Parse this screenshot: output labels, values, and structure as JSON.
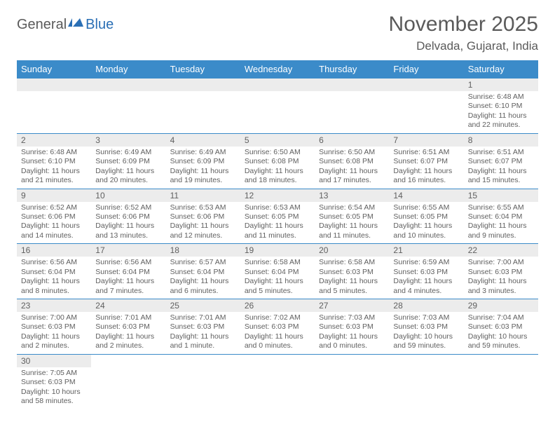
{
  "logo": {
    "part1": "General",
    "part2": "Blue"
  },
  "title": "November 2025",
  "location": "Delvada, Gujarat, India",
  "colors": {
    "header_bg": "#3b8bc9",
    "header_text": "#ffffff",
    "daynum_bg": "#ececec",
    "divider": "#3b8bc9",
    "text": "#606060",
    "logo_gray": "#5a5a5a",
    "logo_blue": "#2a6fb5"
  },
  "weekdays": [
    "Sunday",
    "Monday",
    "Tuesday",
    "Wednesday",
    "Thursday",
    "Friday",
    "Saturday"
  ],
  "weeks": [
    [
      null,
      null,
      null,
      null,
      null,
      null,
      {
        "n": "1",
        "sr": "6:48 AM",
        "ss": "6:10 PM",
        "dl": "11 hours and 22 minutes."
      }
    ],
    [
      {
        "n": "2",
        "sr": "6:48 AM",
        "ss": "6:10 PM",
        "dl": "11 hours and 21 minutes."
      },
      {
        "n": "3",
        "sr": "6:49 AM",
        "ss": "6:09 PM",
        "dl": "11 hours and 20 minutes."
      },
      {
        "n": "4",
        "sr": "6:49 AM",
        "ss": "6:09 PM",
        "dl": "11 hours and 19 minutes."
      },
      {
        "n": "5",
        "sr": "6:50 AM",
        "ss": "6:08 PM",
        "dl": "11 hours and 18 minutes."
      },
      {
        "n": "6",
        "sr": "6:50 AM",
        "ss": "6:08 PM",
        "dl": "11 hours and 17 minutes."
      },
      {
        "n": "7",
        "sr": "6:51 AM",
        "ss": "6:07 PM",
        "dl": "11 hours and 16 minutes."
      },
      {
        "n": "8",
        "sr": "6:51 AM",
        "ss": "6:07 PM",
        "dl": "11 hours and 15 minutes."
      }
    ],
    [
      {
        "n": "9",
        "sr": "6:52 AM",
        "ss": "6:06 PM",
        "dl": "11 hours and 14 minutes."
      },
      {
        "n": "10",
        "sr": "6:52 AM",
        "ss": "6:06 PM",
        "dl": "11 hours and 13 minutes."
      },
      {
        "n": "11",
        "sr": "6:53 AM",
        "ss": "6:06 PM",
        "dl": "11 hours and 12 minutes."
      },
      {
        "n": "12",
        "sr": "6:53 AM",
        "ss": "6:05 PM",
        "dl": "11 hours and 11 minutes."
      },
      {
        "n": "13",
        "sr": "6:54 AM",
        "ss": "6:05 PM",
        "dl": "11 hours and 11 minutes."
      },
      {
        "n": "14",
        "sr": "6:55 AM",
        "ss": "6:05 PM",
        "dl": "11 hours and 10 minutes."
      },
      {
        "n": "15",
        "sr": "6:55 AM",
        "ss": "6:04 PM",
        "dl": "11 hours and 9 minutes."
      }
    ],
    [
      {
        "n": "16",
        "sr": "6:56 AM",
        "ss": "6:04 PM",
        "dl": "11 hours and 8 minutes."
      },
      {
        "n": "17",
        "sr": "6:56 AM",
        "ss": "6:04 PM",
        "dl": "11 hours and 7 minutes."
      },
      {
        "n": "18",
        "sr": "6:57 AM",
        "ss": "6:04 PM",
        "dl": "11 hours and 6 minutes."
      },
      {
        "n": "19",
        "sr": "6:58 AM",
        "ss": "6:04 PM",
        "dl": "11 hours and 5 minutes."
      },
      {
        "n": "20",
        "sr": "6:58 AM",
        "ss": "6:03 PM",
        "dl": "11 hours and 5 minutes."
      },
      {
        "n": "21",
        "sr": "6:59 AM",
        "ss": "6:03 PM",
        "dl": "11 hours and 4 minutes."
      },
      {
        "n": "22",
        "sr": "7:00 AM",
        "ss": "6:03 PM",
        "dl": "11 hours and 3 minutes."
      }
    ],
    [
      {
        "n": "23",
        "sr": "7:00 AM",
        "ss": "6:03 PM",
        "dl": "11 hours and 2 minutes."
      },
      {
        "n": "24",
        "sr": "7:01 AM",
        "ss": "6:03 PM",
        "dl": "11 hours and 2 minutes."
      },
      {
        "n": "25",
        "sr": "7:01 AM",
        "ss": "6:03 PM",
        "dl": "11 hours and 1 minute."
      },
      {
        "n": "26",
        "sr": "7:02 AM",
        "ss": "6:03 PM",
        "dl": "11 hours and 0 minutes."
      },
      {
        "n": "27",
        "sr": "7:03 AM",
        "ss": "6:03 PM",
        "dl": "11 hours and 0 minutes."
      },
      {
        "n": "28",
        "sr": "7:03 AM",
        "ss": "6:03 PM",
        "dl": "10 hours and 59 minutes."
      },
      {
        "n": "29",
        "sr": "7:04 AM",
        "ss": "6:03 PM",
        "dl": "10 hours and 59 minutes."
      }
    ],
    [
      {
        "n": "30",
        "sr": "7:05 AM",
        "ss": "6:03 PM",
        "dl": "10 hours and 58 minutes."
      },
      null,
      null,
      null,
      null,
      null,
      null
    ]
  ],
  "labels": {
    "sunrise": "Sunrise: ",
    "sunset": "Sunset: ",
    "daylight": "Daylight: "
  }
}
